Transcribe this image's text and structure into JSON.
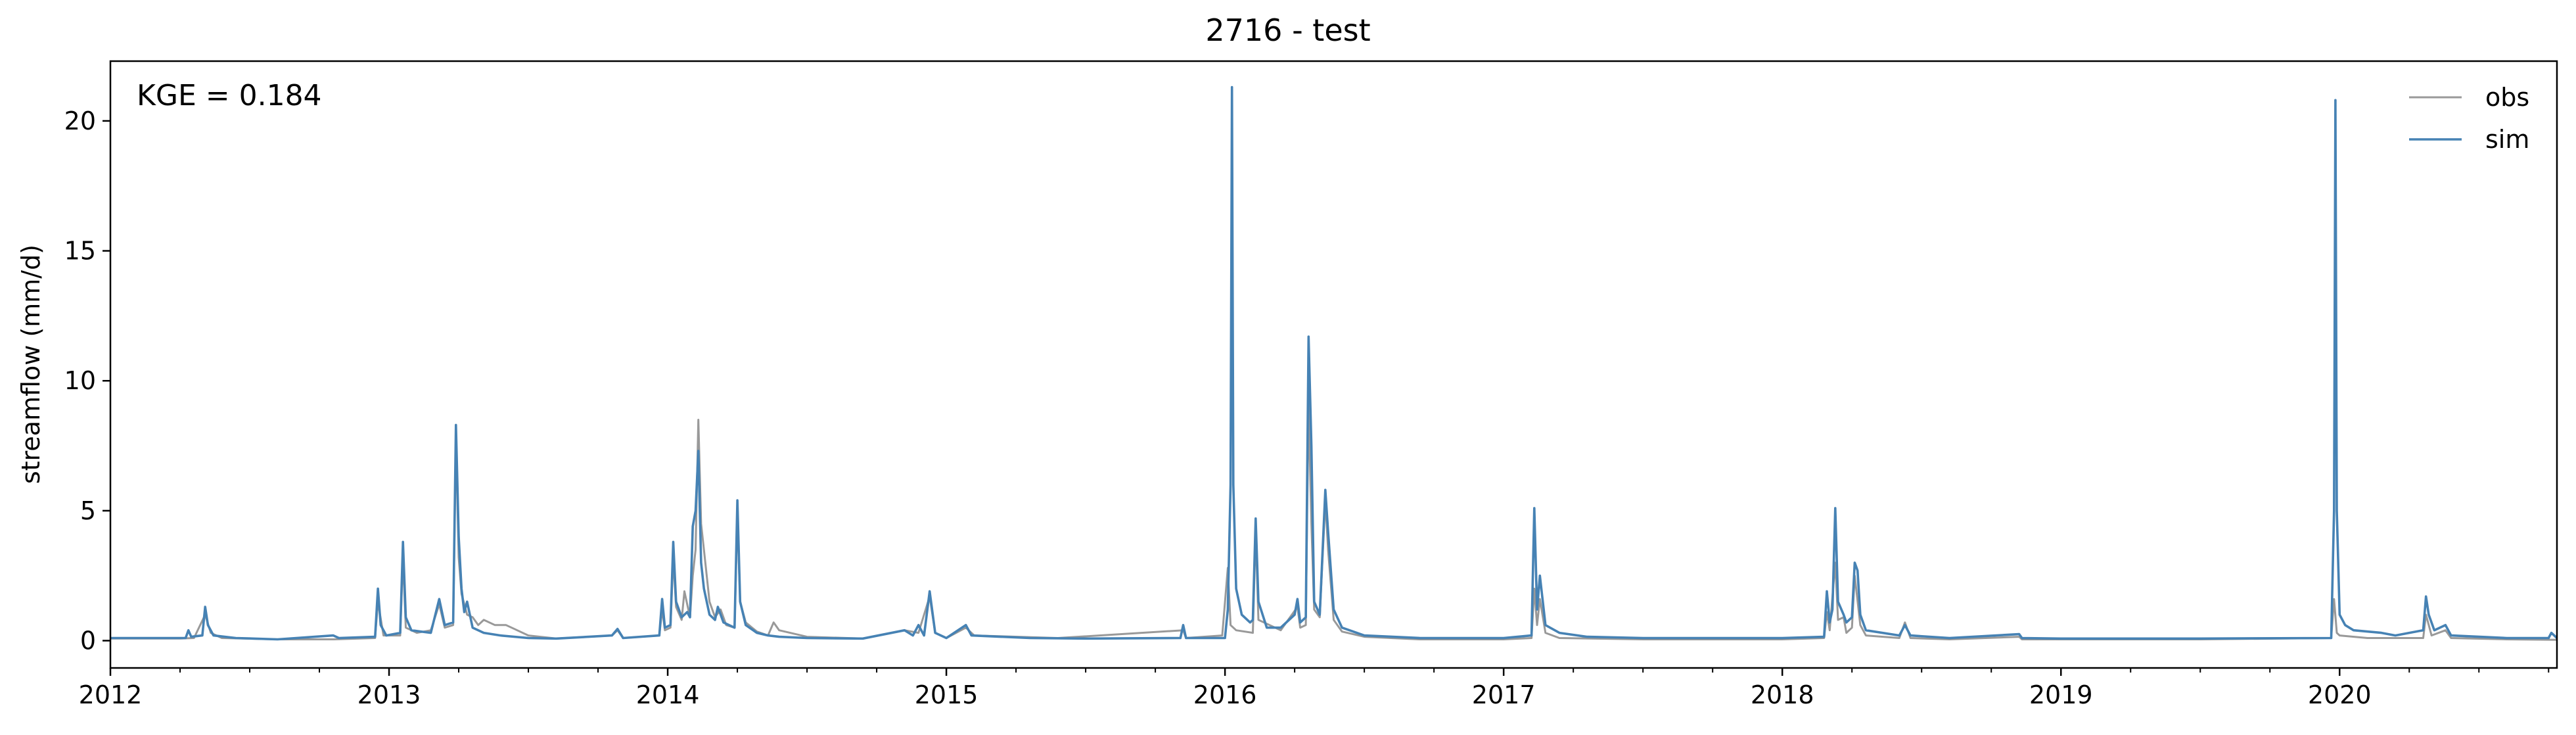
{
  "chart_data": {
    "type": "line",
    "title": "2716 - test",
    "xlabel": "",
    "ylabel": "streamflow (mm/d)",
    "annotation": "KGE = 0.184",
    "x_unit": "year",
    "xlim": [
      2012.0,
      2020.78
    ],
    "ylim": [
      -1.05,
      22.3
    ],
    "x_ticks": [
      {
        "value": 2012,
        "label": "2012"
      },
      {
        "value": 2013,
        "label": "2013"
      },
      {
        "value": 2014,
        "label": "2014"
      },
      {
        "value": 2015,
        "label": "2015"
      },
      {
        "value": 2016,
        "label": "2016"
      },
      {
        "value": 2017,
        "label": "2017"
      },
      {
        "value": 2018,
        "label": "2018"
      },
      {
        "value": 2019,
        "label": "2019"
      },
      {
        "value": 2020,
        "label": "2020"
      }
    ],
    "y_ticks": [
      {
        "value": 0,
        "label": "0"
      },
      {
        "value": 5,
        "label": "5"
      },
      {
        "value": 10,
        "label": "10"
      },
      {
        "value": 15,
        "label": "15"
      },
      {
        "value": 20,
        "label": "20"
      }
    ],
    "grid": false,
    "legend_position": "top-right",
    "series": [
      {
        "name": "obs",
        "color": "#999999",
        "points": [
          [
            2012.0,
            0.08
          ],
          [
            2012.25,
            0.08
          ],
          [
            2012.3,
            0.1
          ],
          [
            2012.34,
            1.0
          ],
          [
            2012.36,
            0.3
          ],
          [
            2012.4,
            0.1
          ],
          [
            2012.6,
            0.05
          ],
          [
            2012.8,
            0.05
          ],
          [
            2012.95,
            0.1
          ],
          [
            2012.96,
            1.5
          ],
          [
            2012.98,
            0.2
          ],
          [
            2013.04,
            0.2
          ],
          [
            2013.05,
            3.2
          ],
          [
            2013.06,
            0.5
          ],
          [
            2013.1,
            0.3
          ],
          [
            2013.15,
            0.4
          ],
          [
            2013.18,
            1.4
          ],
          [
            2013.2,
            0.5
          ],
          [
            2013.23,
            0.6
          ],
          [
            2013.24,
            7.8
          ],
          [
            2013.25,
            3.2
          ],
          [
            2013.26,
            1.8
          ],
          [
            2013.28,
            1.0
          ],
          [
            2013.3,
            0.9
          ],
          [
            2013.32,
            0.6
          ],
          [
            2013.34,
            0.8
          ],
          [
            2013.38,
            0.6
          ],
          [
            2013.42,
            0.6
          ],
          [
            2013.45,
            0.45
          ],
          [
            2013.5,
            0.2
          ],
          [
            2013.6,
            0.08
          ],
          [
            2013.8,
            0.2
          ],
          [
            2013.82,
            0.4
          ],
          [
            2013.84,
            0.1
          ],
          [
            2013.97,
            0.2
          ],
          [
            2013.98,
            1.2
          ],
          [
            2013.99,
            0.4
          ],
          [
            2014.01,
            0.5
          ],
          [
            2014.02,
            3.2
          ],
          [
            2014.03,
            1.3
          ],
          [
            2014.05,
            0.8
          ],
          [
            2014.06,
            1.9
          ],
          [
            2014.08,
            0.9
          ],
          [
            2014.09,
            2.5
          ],
          [
            2014.1,
            3.5
          ],
          [
            2014.11,
            8.5
          ],
          [
            2014.12,
            4.5
          ],
          [
            2014.13,
            3.5
          ],
          [
            2014.15,
            1.5
          ],
          [
            2014.17,
            0.9
          ],
          [
            2014.19,
            1.2
          ],
          [
            2014.21,
            0.6
          ],
          [
            2014.24,
            0.5
          ],
          [
            2014.25,
            4.8
          ],
          [
            2014.26,
            1.5
          ],
          [
            2014.28,
            0.7
          ],
          [
            2014.32,
            0.35
          ],
          [
            2014.36,
            0.2
          ],
          [
            2014.38,
            0.7
          ],
          [
            2014.4,
            0.4
          ],
          [
            2014.5,
            0.15
          ],
          [
            2014.7,
            0.08
          ],
          [
            2014.85,
            0.4
          ],
          [
            2014.9,
            0.3
          ],
          [
            2014.94,
            1.7
          ],
          [
            2014.96,
            0.3
          ],
          [
            2015.0,
            0.1
          ],
          [
            2015.07,
            0.5
          ],
          [
            2015.1,
            0.2
          ],
          [
            2015.4,
            0.1
          ],
          [
            2015.85,
            0.4
          ],
          [
            2015.86,
            0.1
          ],
          [
            2015.99,
            0.2
          ],
          [
            2016.01,
            2.8
          ],
          [
            2016.02,
            0.6
          ],
          [
            2016.03,
            0.5
          ],
          [
            2016.04,
            0.4
          ],
          [
            2016.1,
            0.3
          ],
          [
            2016.11,
            4.2
          ],
          [
            2016.12,
            0.8
          ],
          [
            2016.2,
            0.4
          ],
          [
            2016.26,
            1.3
          ],
          [
            2016.27,
            0.5
          ],
          [
            2016.29,
            0.6
          ],
          [
            2016.3,
            9.1
          ],
          [
            2016.31,
            4.5
          ],
          [
            2016.32,
            1.2
          ],
          [
            2016.34,
            0.9
          ],
          [
            2016.36,
            5.4
          ],
          [
            2016.37,
            3.5
          ],
          [
            2016.39,
            0.8
          ],
          [
            2016.42,
            0.35
          ],
          [
            2016.5,
            0.15
          ],
          [
            2016.7,
            0.05
          ],
          [
            2017.0,
            0.05
          ],
          [
            2017.1,
            0.1
          ],
          [
            2017.11,
            2.0
          ],
          [
            2017.12,
            0.6
          ],
          [
            2017.13,
            1.6
          ],
          [
            2017.15,
            0.3
          ],
          [
            2017.2,
            0.1
          ],
          [
            2017.5,
            0.05
          ],
          [
            2018.0,
            0.05
          ],
          [
            2018.15,
            0.1
          ],
          [
            2018.16,
            1.1
          ],
          [
            2018.17,
            0.4
          ],
          [
            2018.19,
            3.0
          ],
          [
            2018.2,
            0.8
          ],
          [
            2018.22,
            0.9
          ],
          [
            2018.23,
            0.3
          ],
          [
            2018.25,
            0.5
          ],
          [
            2018.26,
            2.5
          ],
          [
            2018.28,
            0.6
          ],
          [
            2018.3,
            0.2
          ],
          [
            2018.42,
            0.1
          ],
          [
            2018.44,
            0.7
          ],
          [
            2018.46,
            0.1
          ],
          [
            2018.6,
            0.05
          ],
          [
            2018.85,
            0.15
          ],
          [
            2018.86,
            0.05
          ],
          [
            2019.0,
            0.05
          ],
          [
            2019.5,
            0.05
          ],
          [
            2019.97,
            0.1
          ],
          [
            2019.98,
            1.6
          ],
          [
            2019.99,
            0.3
          ],
          [
            2020.0,
            0.2
          ],
          [
            2020.1,
            0.1
          ],
          [
            2020.3,
            0.1
          ],
          [
            2020.31,
            1.0
          ],
          [
            2020.33,
            0.2
          ],
          [
            2020.38,
            0.4
          ],
          [
            2020.4,
            0.1
          ],
          [
            2020.6,
            0.05
          ],
          [
            2020.78,
            0.03
          ]
        ]
      },
      {
        "name": "sim",
        "color": "#4682b4",
        "points": [
          [
            2012.0,
            0.1
          ],
          [
            2012.2,
            0.1
          ],
          [
            2012.27,
            0.1
          ],
          [
            2012.28,
            0.4
          ],
          [
            2012.29,
            0.15
          ],
          [
            2012.33,
            0.2
          ],
          [
            2012.34,
            1.3
          ],
          [
            2012.35,
            0.6
          ],
          [
            2012.37,
            0.2
          ],
          [
            2012.45,
            0.1
          ],
          [
            2012.6,
            0.05
          ],
          [
            2012.8,
            0.2
          ],
          [
            2012.82,
            0.1
          ],
          [
            2012.95,
            0.15
          ],
          [
            2012.96,
            2.0
          ],
          [
            2012.97,
            0.6
          ],
          [
            2012.99,
            0.2
          ],
          [
            2013.04,
            0.3
          ],
          [
            2013.05,
            3.8
          ],
          [
            2013.06,
            0.9
          ],
          [
            2013.08,
            0.4
          ],
          [
            2013.15,
            0.3
          ],
          [
            2013.18,
            1.6
          ],
          [
            2013.2,
            0.6
          ],
          [
            2013.23,
            0.7
          ],
          [
            2013.24,
            8.3
          ],
          [
            2013.25,
            4.0
          ],
          [
            2013.26,
            2.0
          ],
          [
            2013.27,
            1.1
          ],
          [
            2013.28,
            1.5
          ],
          [
            2013.3,
            0.5
          ],
          [
            2013.34,
            0.3
          ],
          [
            2013.4,
            0.2
          ],
          [
            2013.5,
            0.1
          ],
          [
            2013.6,
            0.08
          ],
          [
            2013.8,
            0.2
          ],
          [
            2013.82,
            0.45
          ],
          [
            2013.84,
            0.1
          ],
          [
            2013.97,
            0.2
          ],
          [
            2013.98,
            1.6
          ],
          [
            2013.99,
            0.5
          ],
          [
            2014.01,
            0.6
          ],
          [
            2014.02,
            3.8
          ],
          [
            2014.03,
            1.5
          ],
          [
            2014.05,
            0.9
          ],
          [
            2014.07,
            1.1
          ],
          [
            2014.08,
            0.9
          ],
          [
            2014.09,
            4.4
          ],
          [
            2014.1,
            5.0
          ],
          [
            2014.11,
            7.3
          ],
          [
            2014.12,
            3.0
          ],
          [
            2014.13,
            2.0
          ],
          [
            2014.15,
            1.0
          ],
          [
            2014.17,
            0.8
          ],
          [
            2014.18,
            1.3
          ],
          [
            2014.2,
            0.7
          ],
          [
            2014.24,
            0.5
          ],
          [
            2014.25,
            5.4
          ],
          [
            2014.26,
            1.5
          ],
          [
            2014.28,
            0.6
          ],
          [
            2014.32,
            0.3
          ],
          [
            2014.36,
            0.2
          ],
          [
            2014.4,
            0.15
          ],
          [
            2014.5,
            0.1
          ],
          [
            2014.7,
            0.08
          ],
          [
            2014.85,
            0.4
          ],
          [
            2014.88,
            0.2
          ],
          [
            2014.9,
            0.6
          ],
          [
            2014.92,
            0.2
          ],
          [
            2014.94,
            1.9
          ],
          [
            2014.96,
            0.3
          ],
          [
            2015.0,
            0.1
          ],
          [
            2015.07,
            0.6
          ],
          [
            2015.09,
            0.2
          ],
          [
            2015.3,
            0.1
          ],
          [
            2015.5,
            0.08
          ],
          [
            2015.84,
            0.1
          ],
          [
            2015.85,
            0.6
          ],
          [
            2015.86,
            0.1
          ],
          [
            2016.0,
            0.1
          ],
          [
            2016.01,
            1.2
          ],
          [
            2016.02,
            6.0
          ],
          [
            2016.025,
            21.3
          ],
          [
            2016.03,
            6.0
          ],
          [
            2016.04,
            2.0
          ],
          [
            2016.06,
            1.0
          ],
          [
            2016.09,
            0.7
          ],
          [
            2016.1,
            0.8
          ],
          [
            2016.11,
            4.7
          ],
          [
            2016.12,
            1.5
          ],
          [
            2016.15,
            0.5
          ],
          [
            2016.2,
            0.5
          ],
          [
            2016.25,
            1.0
          ],
          [
            2016.26,
            1.6
          ],
          [
            2016.27,
            0.7
          ],
          [
            2016.29,
            0.9
          ],
          [
            2016.3,
            11.7
          ],
          [
            2016.31,
            7.5
          ],
          [
            2016.32,
            1.5
          ],
          [
            2016.34,
            1.0
          ],
          [
            2016.36,
            5.8
          ],
          [
            2016.37,
            4.2
          ],
          [
            2016.39,
            1.2
          ],
          [
            2016.42,
            0.5
          ],
          [
            2016.5,
            0.2
          ],
          [
            2016.7,
            0.1
          ],
          [
            2017.0,
            0.1
          ],
          [
            2017.1,
            0.2
          ],
          [
            2017.11,
            5.1
          ],
          [
            2017.12,
            1.2
          ],
          [
            2017.13,
            2.5
          ],
          [
            2017.15,
            0.6
          ],
          [
            2017.2,
            0.3
          ],
          [
            2017.3,
            0.15
          ],
          [
            2017.5,
            0.1
          ],
          [
            2018.0,
            0.1
          ],
          [
            2018.15,
            0.15
          ],
          [
            2018.16,
            1.9
          ],
          [
            2018.17,
            0.7
          ],
          [
            2018.18,
            1.2
          ],
          [
            2018.19,
            5.1
          ],
          [
            2018.2,
            1.5
          ],
          [
            2018.22,
            1.0
          ],
          [
            2018.23,
            0.7
          ],
          [
            2018.25,
            0.9
          ],
          [
            2018.26,
            3.0
          ],
          [
            2018.27,
            2.7
          ],
          [
            2018.28,
            1.0
          ],
          [
            2018.3,
            0.4
          ],
          [
            2018.42,
            0.2
          ],
          [
            2018.44,
            0.6
          ],
          [
            2018.46,
            0.2
          ],
          [
            2018.6,
            0.1
          ],
          [
            2018.85,
            0.25
          ],
          [
            2018.86,
            0.1
          ],
          [
            2019.0,
            0.08
          ],
          [
            2019.5,
            0.08
          ],
          [
            2019.97,
            0.1
          ],
          [
            2019.98,
            5.0
          ],
          [
            2019.985,
            20.8
          ],
          [
            2019.99,
            5.0
          ],
          [
            2020.0,
            1.0
          ],
          [
            2020.02,
            0.6
          ],
          [
            2020.05,
            0.4
          ],
          [
            2020.15,
            0.3
          ],
          [
            2020.2,
            0.2
          ],
          [
            2020.3,
            0.4
          ],
          [
            2020.31,
            1.7
          ],
          [
            2020.32,
            1.0
          ],
          [
            2020.34,
            0.4
          ],
          [
            2020.38,
            0.6
          ],
          [
            2020.4,
            0.2
          ],
          [
            2020.6,
            0.1
          ],
          [
            2020.75,
            0.1
          ],
          [
            2020.76,
            0.3
          ],
          [
            2020.78,
            0.1
          ]
        ]
      }
    ]
  }
}
